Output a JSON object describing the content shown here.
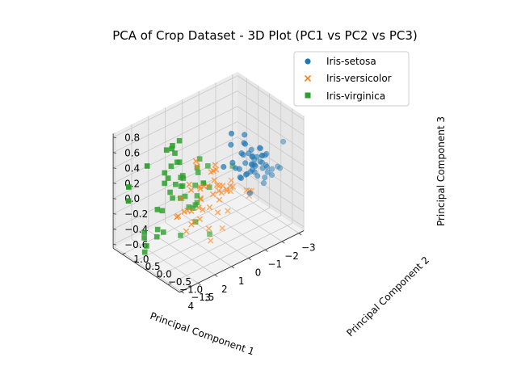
{
  "chart_data": {
    "type": "scatter",
    "title": "PCA of Crop Dataset - 3D Plot (PC1 vs PC2 vs PC3)",
    "xlabel": "Principal Component 1",
    "ylabel": "Principal Component 2",
    "zlabel": "Principal Component 3",
    "xlim": [
      -3.3,
      4.1
    ],
    "ylim": [
      -1.5,
      1.4
    ],
    "zlim": [
      -0.65,
      0.85
    ],
    "xticks": [
      "−3",
      "−2",
      "−1",
      "0",
      "1",
      "2",
      "3",
      "4"
    ],
    "yticks": [
      "−1.5",
      "−1.0",
      "−0.5",
      "0.0",
      "0.5",
      "1.0"
    ],
    "zticks": [
      "−0.6",
      "−0.4",
      "−0.2",
      "0.0",
      "0.2",
      "0.4",
      "0.6",
      "0.8"
    ],
    "grid": true,
    "legend_position": "top-right",
    "series": [
      {
        "name": "Iris-setosa",
        "marker": "circle",
        "color": "#1f77b4",
        "points": [
          [
            -2.7,
            0.32,
            0.02
          ],
          [
            -2.5,
            -0.18,
            0.08
          ],
          [
            -2.9,
            -0.14,
            -0.02
          ],
          [
            -2.75,
            -0.32,
            -0.06
          ],
          [
            -2.72,
            0.33,
            -0.09
          ],
          [
            -2.3,
            0.75,
            -0.17
          ],
          [
            -2.85,
            -0.08,
            -0.26
          ],
          [
            -2.63,
            0.17,
            0.02
          ],
          [
            -2.95,
            -0.61,
            0.05
          ],
          [
            -2.71,
            -0.11,
            0.12
          ],
          [
            -2.52,
            0.65,
            0.02
          ],
          [
            -2.61,
            0.02,
            -0.16
          ],
          [
            -2.79,
            -0.24,
            0.16
          ],
          [
            -3.23,
            -0.51,
            -0.02
          ],
          [
            -2.64,
            1.18,
            0.16
          ],
          [
            -2.39,
            1.34,
            -0.28
          ],
          [
            -2.62,
            0.82,
            -0.23
          ],
          [
            -2.65,
            0.31,
            -0.07
          ],
          [
            -2.2,
            0.88,
            0.12
          ],
          [
            -2.59,
            0.51,
            -0.24
          ],
          [
            -2.31,
            0.39,
            0.23
          ],
          [
            -2.54,
            0.43,
            -0.21
          ],
          [
            -3.21,
            0.14,
            -0.27
          ],
          [
            -2.3,
            0.1,
            -0.09
          ],
          [
            -2.36,
            -0.04,
            -0.07
          ],
          [
            -2.51,
            -0.15,
            0.25
          ],
          [
            -2.47,
            0.14,
            -0.09
          ],
          [
            -2.56,
            0.37,
            0.07
          ],
          [
            -2.64,
            0.31,
            0.12
          ],
          [
            -2.63,
            -0.19,
            -0.02
          ],
          [
            -2.59,
            -0.2,
            0.06
          ],
          [
            -2.41,
            0.41,
            0.2
          ],
          [
            -2.65,
            0.81,
            -0.34
          ],
          [
            -2.6,
            1.1,
            -0.2
          ],
          [
            -2.71,
            -0.11,
            0.12
          ],
          [
            -2.87,
            0.08,
            0.16
          ],
          [
            -2.63,
            0.6,
            0.26
          ],
          [
            -2.8,
            0.26,
            -0.1
          ],
          [
            -2.98,
            -0.34,
            -0.04
          ],
          [
            -2.59,
            0.22,
            0.06
          ],
          [
            -2.77,
            0.27,
            -0.08
          ],
          [
            -2.85,
            -0.93,
            0.45
          ],
          [
            -2.99,
            -0.33,
            -0.12
          ],
          [
            -2.41,
            0.2,
            -0.4
          ],
          [
            -2.21,
            0.44,
            -0.23
          ],
          [
            -2.71,
            -0.24,
            0.15
          ],
          [
            -2.54,
            0.5,
            -0.08
          ],
          [
            -2.84,
            -0.22,
            -0.02
          ],
          [
            -2.54,
            0.59,
            0.01
          ],
          [
            -2.7,
            0.11,
            0.06
          ]
        ]
      },
      {
        "name": "Iris-versicolor",
        "marker": "x",
        "color": "#ff7f0e",
        "points": [
          [
            1.28,
            0.69,
            -0.41
          ],
          [
            0.93,
            0.32,
            -0.02
          ],
          [
            1.46,
            0.5,
            -0.34
          ],
          [
            0.18,
            -0.83,
            0.18
          ],
          [
            1.09,
            0.07,
            -0.37
          ],
          [
            0.64,
            -0.42,
            0.04
          ],
          [
            1.1,
            0.28,
            0.08
          ],
          [
            -0.75,
            -1.0,
            0.05
          ],
          [
            1.04,
            0.23,
            -0.44
          ],
          [
            -0.01,
            -0.72,
            0.07
          ],
          [
            -0.51,
            -1.27,
            0.13
          ],
          [
            0.51,
            -0.1,
            0.07
          ],
          [
            0.26,
            -0.55,
            -0.42
          ],
          [
            0.98,
            -0.12,
            0.09
          ],
          [
            -0.17,
            -0.25,
            0.03
          ],
          [
            0.93,
            0.47,
            -0.32
          ],
          [
            0.66,
            -0.35,
            0.32
          ],
          [
            0.23,
            -0.33,
            -0.26
          ],
          [
            0.94,
            -0.54,
            -0.51
          ],
          [
            0.04,
            -0.58,
            0.07
          ],
          [
            1.12,
            -0.08,
            0.39
          ],
          [
            0.36,
            -0.07,
            -0.23
          ],
          [
            1.3,
            -0.33,
            -0.23
          ],
          [
            0.92,
            -0.18,
            -0.18
          ],
          [
            0.71,
            0.15,
            -0.24
          ],
          [
            0.9,
            0.33,
            -0.3
          ],
          [
            1.33,
            0.24,
            -0.5
          ],
          [
            1.56,
            0.27,
            -0.05
          ],
          [
            0.81,
            -0.16,
            0.11
          ],
          [
            -0.31,
            -0.37,
            -0.29
          ],
          [
            -0.07,
            -0.7,
            0.2
          ],
          [
            -0.19,
            -0.68,
            0.1
          ],
          [
            0.14,
            -0.31,
            0.01
          ],
          [
            1.38,
            -0.42,
            0.07
          ],
          [
            0.59,
            -0.48,
            0.43
          ],
          [
            0.81,
            0.2,
            0.37
          ],
          [
            1.22,
            0.41,
            -0.29
          ],
          [
            0.81,
            -0.37,
            -0.4
          ],
          [
            0.25,
            -0.27,
            0.29
          ],
          [
            0.16,
            -0.68,
            0.08
          ],
          [
            0.46,
            -0.67,
            0.09
          ],
          [
            0.89,
            -0.03,
            0.09
          ],
          [
            0.23,
            -0.4,
            -0.08
          ],
          [
            -0.71,
            -1.01,
            -0.01
          ],
          [
            0.36,
            -0.5,
            0.14
          ],
          [
            0.33,
            -0.21,
            0.27
          ],
          [
            0.38,
            -0.29,
            0.17
          ],
          [
            0.64,
            0.11,
            -0.13
          ],
          [
            -0.91,
            -0.75,
            -0.01
          ],
          [
            0.3,
            -0.35,
            0.11
          ]
        ]
      },
      {
        "name": "Iris-virginica",
        "marker": "square",
        "color": "#2ca02c",
        "points": [
          [
            2.53,
            -0.01,
            0.76
          ],
          [
            1.41,
            -0.57,
            0.3
          ],
          [
            2.62,
            0.34,
            -0.11
          ],
          [
            1.97,
            -0.18,
            0.11
          ],
          [
            2.35,
            -0.04,
            0.28
          ],
          [
            3.4,
            0.55,
            -0.35
          ],
          [
            0.52,
            -1.19,
            0.55
          ],
          [
            2.93,
            0.35,
            -0.42
          ],
          [
            2.32,
            -0.24,
            -0.35
          ],
          [
            2.92,
            0.78,
            0.42
          ],
          [
            1.66,
            0.24,
            0.24
          ],
          [
            1.8,
            -0.22,
            -0.04
          ],
          [
            2.17,
            0.22,
            0.03
          ],
          [
            1.34,
            -0.78,
            0.28
          ],
          [
            1.59,
            -0.54,
            0.63
          ],
          [
            1.9,
            0.12,
            0.49
          ],
          [
            1.95,
            0.04,
            0.04
          ],
          [
            3.49,
            1.17,
            0.13
          ],
          [
            3.8,
            0.26,
            -0.32
          ],
          [
            1.3,
            -0.76,
            -0.34
          ],
          [
            2.43,
            0.38,
            0.22
          ],
          [
            1.2,
            -0.61,
            0.51
          ],
          [
            3.5,
            0.46,
            -0.58
          ],
          [
            1.39,
            -0.2,
            -0.06
          ],
          [
            2.28,
            0.33,
            0.28
          ],
          [
            2.61,
            0.56,
            -0.14
          ],
          [
            1.26,
            -0.18,
            0.04
          ],
          [
            1.29,
            -0.12,
            0.17
          ],
          [
            2.12,
            -0.21,
            0.37
          ],
          [
            2.39,
            0.46,
            -0.44
          ],
          [
            2.84,
            0.38,
            -0.34
          ],
          [
            3.23,
            1.37,
            -0.12
          ],
          [
            2.16,
            -0.22,
            0.41
          ],
          [
            1.44,
            -0.14,
            -0.11
          ],
          [
            1.78,
            -0.5,
            -0.18
          ],
          [
            3.08,
            0.69,
            -0.59
          ],
          [
            2.14,
            0.14,
            0.63
          ],
          [
            1.9,
            0.05,
            0.19
          ],
          [
            1.17,
            -0.16,
            0.33
          ],
          [
            2.11,
            0.37,
            0.07
          ],
          [
            2.31,
            0.18,
            0.47
          ],
          [
            1.92,
            0.41,
            0.65
          ],
          [
            1.41,
            -0.57,
            0.3
          ],
          [
            2.56,
            0.28,
            0.39
          ],
          [
            2.42,
            0.3,
            0.67
          ],
          [
            1.94,
            0.19,
            0.48
          ],
          [
            1.53,
            -0.38,
            0.02
          ],
          [
            1.76,
            0.08,
            0.17
          ],
          [
            1.9,
            0.12,
            0.77
          ],
          [
            1.39,
            -0.28,
            0.44
          ]
        ]
      }
    ]
  }
}
